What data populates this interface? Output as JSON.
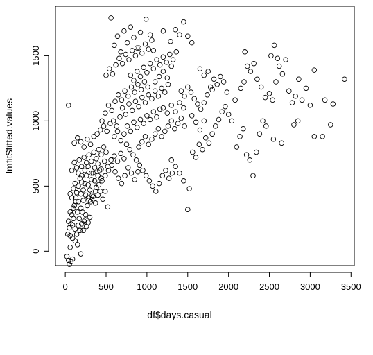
{
  "chart_data": {
    "type": "scatter",
    "title": "",
    "xlabel": "df$days.casual",
    "ylabel": "lmfit$fitted.values",
    "xlim": [
      -120,
      3540
    ],
    "ylim": [
      -110,
      1880
    ],
    "xticks": [
      0,
      500,
      1000,
      1500,
      2000,
      2500,
      3000,
      3500
    ],
    "yticks": [
      0,
      500,
      1000,
      1500
    ],
    "marker": "open-circle",
    "grid": false,
    "legend": "none",
    "points": [
      [
        20,
        -40
      ],
      [
        40,
        -70
      ],
      [
        50,
        -100
      ],
      [
        70,
        -80
      ],
      [
        90,
        -60
      ],
      [
        60,
        30
      ],
      [
        30,
        130
      ],
      [
        60,
        120
      ],
      [
        90,
        100
      ],
      [
        120,
        80
      ],
      [
        150,
        50
      ],
      [
        190,
        -20
      ],
      [
        40,
        1120
      ],
      [
        40,
        230
      ],
      [
        60,
        300
      ],
      [
        80,
        280
      ],
      [
        90,
        200
      ],
      [
        110,
        350
      ],
      [
        130,
        380
      ],
      [
        150,
        300
      ],
      [
        170,
        250
      ],
      [
        190,
        330
      ],
      [
        210,
        300
      ],
      [
        230,
        230
      ],
      [
        250,
        280
      ],
      [
        270,
        350
      ],
      [
        290,
        390
      ],
      [
        50,
        180
      ],
      [
        70,
        210
      ],
      [
        100,
        250
      ],
      [
        120,
        170
      ],
      [
        140,
        130
      ],
      [
        160,
        200
      ],
      [
        180,
        160
      ],
      [
        200,
        210
      ],
      [
        220,
        160
      ],
      [
        240,
        240
      ],
      [
        260,
        190
      ],
      [
        280,
        220
      ],
      [
        300,
        260
      ],
      [
        60,
        440
      ],
      [
        80,
        410
      ],
      [
        100,
        480
      ],
      [
        120,
        520
      ],
      [
        140,
        450
      ],
      [
        160,
        500
      ],
      [
        180,
        560
      ],
      [
        200,
        530
      ],
      [
        220,
        470
      ],
      [
        240,
        520
      ],
      [
        260,
        580
      ],
      [
        280,
        510
      ],
      [
        300,
        470
      ],
      [
        320,
        550
      ],
      [
        340,
        600
      ],
      [
        360,
        540
      ],
      [
        380,
        490
      ],
      [
        400,
        580
      ],
      [
        420,
        620
      ],
      [
        440,
        560
      ],
      [
        100,
        330
      ],
      [
        130,
        410
      ],
      [
        160,
        380
      ],
      [
        190,
        440
      ],
      [
        220,
        390
      ],
      [
        250,
        430
      ],
      [
        280,
        410
      ],
      [
        310,
        380
      ],
      [
        340,
        420
      ],
      [
        370,
        370
      ],
      [
        400,
        430
      ],
      [
        430,
        460
      ],
      [
        460,
        400
      ],
      [
        490,
        460
      ],
      [
        520,
        340
      ],
      [
        80,
        620
      ],
      [
        110,
        680
      ],
      [
        140,
        640
      ],
      [
        170,
        700
      ],
      [
        200,
        650
      ],
      [
        230,
        720
      ],
      [
        260,
        680
      ],
      [
        290,
        740
      ],
      [
        320,
        690
      ],
      [
        350,
        760
      ],
      [
        380,
        710
      ],
      [
        410,
        780
      ],
      [
        440,
        740
      ],
      [
        470,
        800
      ],
      [
        500,
        760
      ],
      [
        110,
        830
      ],
      [
        150,
        870
      ],
      [
        190,
        840
      ],
      [
        230,
        800
      ],
      [
        270,
        860
      ],
      [
        310,
        820
      ],
      [
        350,
        880
      ],
      [
        390,
        900
      ],
      [
        430,
        930
      ],
      [
        470,
        960
      ],
      [
        510,
        920
      ],
      [
        550,
        980
      ],
      [
        590,
        1000
      ],
      [
        630,
        960
      ],
      [
        670,
        1030
      ],
      [
        160,
        600
      ],
      [
        200,
        580
      ],
      [
        240,
        620
      ],
      [
        280,
        650
      ],
      [
        320,
        600
      ],
      [
        360,
        640
      ],
      [
        400,
        670
      ],
      [
        440,
        630
      ],
      [
        480,
        690
      ],
      [
        520,
        650
      ],
      [
        560,
        700
      ],
      [
        600,
        730
      ],
      [
        640,
        690
      ],
      [
        680,
        750
      ],
      [
        720,
        710
      ],
      [
        330,
        430
      ],
      [
        370,
        460
      ],
      [
        410,
        510
      ],
      [
        450,
        540
      ],
      [
        490,
        580
      ],
      [
        530,
        620
      ],
      [
        570,
        660
      ],
      [
        610,
        610
      ],
      [
        650,
        560
      ],
      [
        690,
        520
      ],
      [
        730,
        580
      ],
      [
        770,
        640
      ],
      [
        810,
        600
      ],
      [
        850,
        550
      ],
      [
        890,
        610
      ],
      [
        450,
        1000
      ],
      [
        490,
        1060
      ],
      [
        530,
        1120
      ],
      [
        570,
        1080
      ],
      [
        610,
        1150
      ],
      [
        650,
        1200
      ],
      [
        690,
        1160
      ],
      [
        730,
        1230
      ],
      [
        770,
        1190
      ],
      [
        810,
        1260
      ],
      [
        850,
        1220
      ],
      [
        890,
        1280
      ],
      [
        930,
        1240
      ],
      [
        970,
        1300
      ],
      [
        1010,
        1260
      ],
      [
        500,
        1350
      ],
      [
        540,
        1400
      ],
      [
        580,
        1360
      ],
      [
        620,
        1430
      ],
      [
        660,
        1480
      ],
      [
        700,
        1440
      ],
      [
        740,
        1510
      ],
      [
        780,
        1470
      ],
      [
        820,
        1540
      ],
      [
        860,
        1500
      ],
      [
        900,
        1560
      ],
      [
        940,
        1520
      ],
      [
        980,
        1590
      ],
      [
        1020,
        1550
      ],
      [
        1060,
        1620
      ],
      [
        560,
        1790
      ],
      [
        600,
        1580
      ],
      [
        640,
        1650
      ],
      [
        680,
        1530
      ],
      [
        720,
        1690
      ],
      [
        760,
        1600
      ],
      [
        800,
        1720
      ],
      [
        840,
        1640
      ],
      [
        880,
        1560
      ],
      [
        920,
        1680
      ],
      [
        990,
        1780
      ],
      [
        1040,
        1660
      ],
      [
        1080,
        1540
      ],
      [
        1200,
        1690
      ],
      [
        1290,
        1610
      ],
      [
        600,
        880
      ],
      [
        640,
        920
      ],
      [
        680,
        850
      ],
      [
        720,
        900
      ],
      [
        760,
        960
      ],
      [
        800,
        920
      ],
      [
        840,
        990
      ],
      [
        880,
        950
      ],
      [
        920,
        1010
      ],
      [
        960,
        980
      ],
      [
        1000,
        1040
      ],
      [
        1040,
        1010
      ],
      [
        1080,
        1070
      ],
      [
        1120,
        1030
      ],
      [
        1160,
        1090
      ],
      [
        700,
        1100
      ],
      [
        740,
        1050
      ],
      [
        780,
        1130
      ],
      [
        820,
        1080
      ],
      [
        860,
        1150
      ],
      [
        900,
        1110
      ],
      [
        940,
        1180
      ],
      [
        980,
        1140
      ],
      [
        1020,
        1200
      ],
      [
        1060,
        1170
      ],
      [
        1100,
        1230
      ],
      [
        1140,
        1190
      ],
      [
        1180,
        1250
      ],
      [
        1220,
        1220
      ],
      [
        1260,
        1280
      ],
      [
        750,
        820
      ],
      [
        790,
        780
      ],
      [
        830,
        740
      ],
      [
        870,
        700
      ],
      [
        910,
        660
      ],
      [
        950,
        620
      ],
      [
        990,
        580
      ],
      [
        1030,
        540
      ],
      [
        1070,
        500
      ],
      [
        1110,
        460
      ],
      [
        1150,
        520
      ],
      [
        1190,
        580
      ],
      [
        1230,
        620
      ],
      [
        1270,
        560
      ],
      [
        1310,
        600
      ],
      [
        800,
        1350
      ],
      [
        840,
        1310
      ],
      [
        880,
        1380
      ],
      [
        920,
        1340
      ],
      [
        960,
        1410
      ],
      [
        1000,
        1370
      ],
      [
        1040,
        1440
      ],
      [
        1080,
        1400
      ],
      [
        1120,
        1470
      ],
      [
        1160,
        1430
      ],
      [
        1200,
        1490
      ],
      [
        1240,
        1450
      ],
      [
        1280,
        1510
      ],
      [
        1320,
        1470
      ],
      [
        1360,
        1530
      ],
      [
        900,
        800
      ],
      [
        940,
        840
      ],
      [
        980,
        880
      ],
      [
        1020,
        820
      ],
      [
        1060,
        860
      ],
      [
        1100,
        900
      ],
      [
        1140,
        940
      ],
      [
        1180,
        880
      ],
      [
        1220,
        920
      ],
      [
        1260,
        960
      ],
      [
        1300,
        1000
      ],
      [
        1340,
        940
      ],
      [
        1380,
        980
      ],
      [
        1420,
        1020
      ],
      [
        1460,
        960
      ],
      [
        1350,
        1700
      ],
      [
        1400,
        1660
      ],
      [
        1450,
        1760
      ],
      [
        1500,
        1650
      ],
      [
        1550,
        1600
      ],
      [
        1420,
        1230
      ],
      [
        1460,
        1190
      ],
      [
        1500,
        1260
      ],
      [
        1540,
        1220
      ],
      [
        1580,
        1170
      ],
      [
        1620,
        1130
      ],
      [
        1660,
        1090
      ],
      [
        1700,
        1140
      ],
      [
        1740,
        1200
      ],
      [
        1780,
        1260
      ],
      [
        1820,
        1320
      ],
      [
        1860,
        1280
      ],
      [
        1900,
        1340
      ],
      [
        1940,
        1300
      ],
      [
        1980,
        1220
      ],
      [
        1300,
        700
      ],
      [
        1350,
        650
      ],
      [
        1400,
        600
      ],
      [
        1450,
        540
      ],
      [
        1500,
        320
      ],
      [
        1520,
        480
      ],
      [
        1560,
        760
      ],
      [
        1600,
        720
      ],
      [
        1640,
        820
      ],
      [
        1680,
        780
      ],
      [
        1720,
        870
      ],
      [
        1760,
        830
      ],
      [
        1800,
        900
      ],
      [
        1840,
        960
      ],
      [
        1880,
        1010
      ],
      [
        1920,
        1070
      ],
      [
        1960,
        1110
      ],
      [
        2000,
        1050
      ],
      [
        2040,
        1000
      ],
      [
        2080,
        1160
      ],
      [
        2100,
        800
      ],
      [
        2140,
        880
      ],
      [
        2180,
        940
      ],
      [
        2220,
        740
      ],
      [
        2260,
        700
      ],
      [
        2300,
        580
      ],
      [
        2340,
        760
      ],
      [
        2380,
        900
      ],
      [
        2420,
        1000
      ],
      [
        2460,
        960
      ],
      [
        2150,
        1250
      ],
      [
        2190,
        1300
      ],
      [
        2230,
        1420
      ],
      [
        2270,
        1380
      ],
      [
        2310,
        1440
      ],
      [
        2200,
        1530
      ],
      [
        2350,
        1320
      ],
      [
        2400,
        1260
      ],
      [
        2450,
        1180
      ],
      [
        2500,
        1210
      ],
      [
        2540,
        1160
      ],
      [
        2580,
        1300
      ],
      [
        2620,
        1420
      ],
      [
        2660,
        1360
      ],
      [
        2700,
        1470
      ],
      [
        2520,
        1500
      ],
      [
        2560,
        1580
      ],
      [
        2600,
        1480
      ],
      [
        2740,
        1230
      ],
      [
        2780,
        1140
      ],
      [
        2820,
        1190
      ],
      [
        2860,
        1320
      ],
      [
        2900,
        1160
      ],
      [
        2950,
        1250
      ],
      [
        3000,
        1120
      ],
      [
        2550,
        860
      ],
      [
        2650,
        830
      ],
      [
        2800,
        970
      ],
      [
        2850,
        1000
      ],
      [
        3050,
        1390
      ],
      [
        3050,
        880
      ],
      [
        3150,
        880
      ],
      [
        3180,
        1160
      ],
      [
        3280,
        1130
      ],
      [
        3250,
        970
      ],
      [
        3420,
        1320
      ],
      [
        1650,
        1400
      ],
      [
        1700,
        1350
      ],
      [
        1750,
        1380
      ],
      [
        1800,
        1240
      ],
      [
        1200,
        1100
      ],
      [
        1250,
        1060
      ],
      [
        1300,
        1120
      ],
      [
        1350,
        1070
      ],
      [
        1400,
        1140
      ],
      [
        1450,
        1100
      ],
      [
        1550,
        1040
      ],
      [
        1600,
        990
      ],
      [
        1650,
        930
      ],
      [
        1700,
        1000
      ],
      [
        1100,
        1300
      ],
      [
        1150,
        1340
      ],
      [
        1200,
        1380
      ],
      [
        1250,
        1330
      ],
      [
        1300,
        1420
      ]
    ]
  }
}
